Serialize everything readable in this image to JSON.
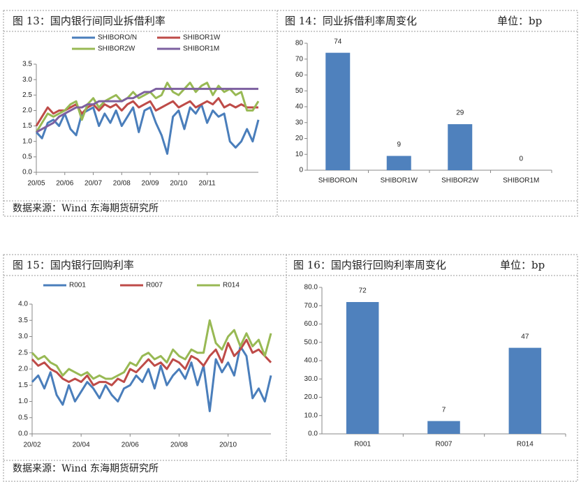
{
  "chart_data": [
    {
      "type": "line",
      "title": "图 13：国内银行间同业拆借利率",
      "categories": [
        "20/05",
        null,
        null,
        null,
        null,
        "20/06",
        null,
        null,
        null,
        null,
        "20/07",
        null,
        null,
        null,
        null,
        "20/08",
        null,
        null,
        null,
        null,
        "20/09",
        null,
        null,
        null,
        null,
        "20/10",
        null,
        null,
        null,
        null,
        "20/11",
        null,
        null,
        null,
        null,
        null,
        null,
        null,
        null,
        null
      ],
      "series": [
        {
          "name": "SHIBORO/N",
          "color": "#4a7ebb",
          "values": [
            1.3,
            1.1,
            1.6,
            1.7,
            1.5,
            1.9,
            1.4,
            1.2,
            1.9,
            2.0,
            2.1,
            1.5,
            1.9,
            1.6,
            2.0,
            1.5,
            1.8,
            2.1,
            1.3,
            2.0,
            2.1,
            1.6,
            1.2,
            0.6,
            1.8,
            2.0,
            1.4,
            2.1,
            1.9,
            2.2,
            1.6,
            2.0,
            1.8,
            1.9,
            1.0,
            0.8,
            1.0,
            1.4,
            1.0,
            1.7
          ]
        },
        {
          "name": "SHIBOR1W",
          "color": "#be4b48",
          "values": [
            1.5,
            1.8,
            2.1,
            1.9,
            2.0,
            2.0,
            2.1,
            2.2,
            1.9,
            2.1,
            2.2,
            2.0,
            2.2,
            2.1,
            2.2,
            2.0,
            2.2,
            2.3,
            2.1,
            2.2,
            2.3,
            2.0,
            2.1,
            2.2,
            2.3,
            2.1,
            2.2,
            2.3,
            2.1,
            2.2,
            2.3,
            2.2,
            2.4,
            2.1,
            2.2,
            2.1,
            2.2,
            2.1,
            2.1,
            2.1
          ]
        },
        {
          "name": "SHIBOR2W",
          "color": "#98b954",
          "values": [
            1.3,
            1.6,
            1.9,
            1.8,
            1.9,
            2.0,
            2.2,
            2.3,
            1.7,
            2.2,
            2.4,
            2.1,
            2.3,
            2.4,
            2.5,
            2.3,
            2.4,
            2.6,
            2.4,
            2.5,
            2.6,
            2.4,
            2.5,
            2.9,
            2.6,
            2.5,
            2.7,
            2.9,
            2.6,
            2.8,
            2.9,
            2.5,
            2.8,
            2.6,
            2.7,
            2.5,
            2.6,
            2.0,
            2.0,
            2.3
          ]
        },
        {
          "name": "SHIBOR1M",
          "color": "#7d60a0",
          "values": [
            1.3,
            1.4,
            1.5,
            1.6,
            1.8,
            1.9,
            2.0,
            2.1,
            2.1,
            2.2,
            2.2,
            2.3,
            2.3,
            2.3,
            2.3,
            2.3,
            2.4,
            2.4,
            2.5,
            2.6,
            2.6,
            2.7,
            2.7,
            2.7,
            2.7,
            2.7,
            2.7,
            2.7,
            2.7,
            2.7,
            2.7,
            2.7,
            2.7,
            2.7,
            2.7,
            2.7,
            2.7,
            2.7,
            2.7,
            2.7
          ]
        }
      ],
      "ylim": [
        0,
        3.5
      ],
      "yticks": [
        {
          "value": 0,
          "label": "0.0"
        },
        0.5,
        {
          "value": 1,
          "label": "1.0"
        },
        1.5,
        {
          "value": 2,
          "label": "2.0"
        },
        2.5,
        {
          "value": 3,
          "label": "3.0"
        },
        3.5
      ]
    },
    {
      "type": "bar",
      "title": "图 14：同业拆借利率周变化",
      "unit": "单位：bp",
      "categories": [
        "SHIBORO/N",
        "SHIBOR1W",
        "SHIBOR2W",
        "SHIBOR1M"
      ],
      "values": [
        74,
        9,
        29,
        0
      ],
      "color": "#4f81bd",
      "ylim": [
        0,
        80
      ],
      "yticks": [
        0,
        10,
        20,
        30,
        40,
        50,
        60,
        70,
        80
      ]
    },
    {
      "type": "line",
      "title": "图 15：国内银行回购利率",
      "categories": [
        "20/02",
        null,
        null,
        null,
        null,
        null,
        null,
        null,
        "20/04",
        null,
        null,
        null,
        null,
        null,
        null,
        null,
        "20/06",
        null,
        null,
        null,
        null,
        null,
        null,
        null,
        "20/08",
        null,
        null,
        null,
        null,
        null,
        null,
        null,
        "20/10",
        null,
        null,
        null,
        null,
        null,
        null,
        null
      ],
      "series": [
        {
          "name": "R001",
          "color": "#4a7ebb",
          "values": [
            1.6,
            1.8,
            1.4,
            1.9,
            1.2,
            0.9,
            1.5,
            1.0,
            1.3,
            1.6,
            1.4,
            1.1,
            1.5,
            1.2,
            1.0,
            1.4,
            1.5,
            1.8,
            1.6,
            2.0,
            1.4,
            2.1,
            1.5,
            1.8,
            2.0,
            1.7,
            2.2,
            1.5,
            2.1,
            0.7,
            2.3,
            1.9,
            2.2,
            1.8,
            2.7,
            2.4,
            1.1,
            1.4,
            1.0,
            1.8
          ]
        },
        {
          "name": "R007",
          "color": "#be4b48",
          "values": [
            2.3,
            2.1,
            2.2,
            2.0,
            1.9,
            1.7,
            1.6,
            1.7,
            1.6,
            1.8,
            1.5,
            1.6,
            1.6,
            1.5,
            1.7,
            1.6,
            2.0,
            1.9,
            2.1,
            2.3,
            2.1,
            2.2,
            2.0,
            2.3,
            2.2,
            2.0,
            2.4,
            2.3,
            2.1,
            2.4,
            2.6,
            2.2,
            2.8,
            2.4,
            2.6,
            2.9,
            2.5,
            2.6,
            2.4,
            2.2
          ]
        },
        {
          "name": "R014",
          "color": "#98b954",
          "values": [
            2.5,
            2.3,
            2.4,
            2.2,
            2.1,
            1.8,
            2.0,
            1.9,
            1.8,
            1.9,
            1.7,
            1.8,
            1.7,
            1.7,
            1.8,
            1.9,
            2.2,
            2.1,
            2.4,
            2.5,
            2.3,
            2.4,
            2.2,
            2.6,
            2.4,
            2.3,
            2.6,
            2.5,
            2.5,
            3.5,
            2.8,
            2.6,
            3.0,
            3.2,
            2.7,
            3.1,
            2.7,
            2.9,
            2.4,
            3.1
          ]
        }
      ],
      "ylim": [
        0,
        4
      ],
      "yticks": [
        {
          "value": 0,
          "label": "0.0"
        },
        0.5,
        {
          "value": 1,
          "label": "1.0"
        },
        1.5,
        {
          "value": 2,
          "label": "2.0"
        },
        2.5,
        {
          "value": 3,
          "label": "3.0"
        },
        3.5,
        {
          "value": 4,
          "label": "4.0"
        }
      ]
    },
    {
      "type": "bar",
      "title": "图 16：国内银行回购利率周变化",
      "unit": "单位：bp",
      "categories": [
        "R001",
        "R007",
        "R014"
      ],
      "values": [
        72,
        7,
        47
      ],
      "color": "#4f81bd",
      "ylim": [
        0,
        80
      ],
      "yticks": [
        {
          "value": 0,
          "label": "0.0"
        },
        {
          "value": 10,
          "label": "10.0"
        },
        {
          "value": 20,
          "label": "20.0"
        },
        {
          "value": 30,
          "label": "30.0"
        },
        {
          "value": 40,
          "label": "40.0"
        },
        {
          "value": 50,
          "label": "50.0"
        },
        {
          "value": 60,
          "label": "60.0"
        },
        {
          "value": 70,
          "label": "70.0"
        },
        {
          "value": 80,
          "label": "80.0"
        }
      ]
    }
  ],
  "sources": [
    "数据来源：Wind  东海期货研究所",
    "数据来源：Wind  东海期货研究所"
  ]
}
